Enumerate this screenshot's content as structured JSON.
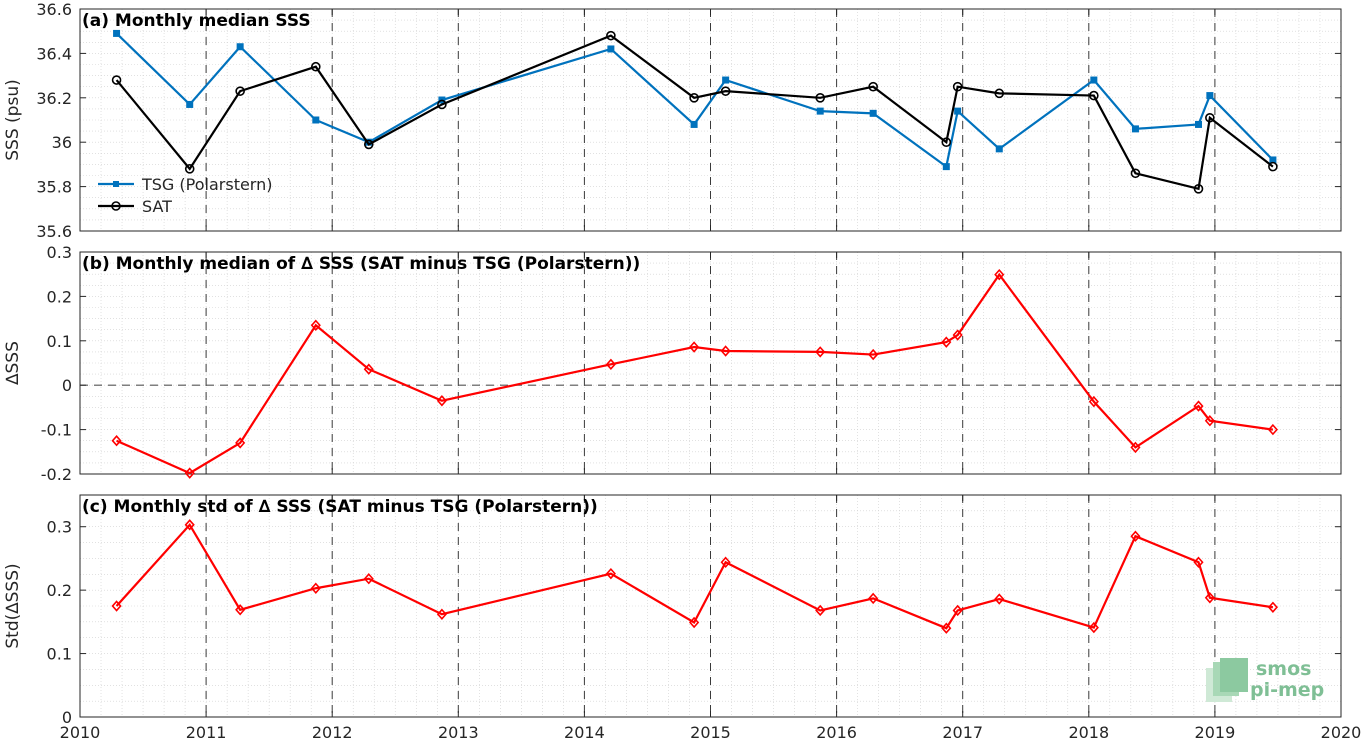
{
  "chart_data": [
    {
      "type": "line",
      "title": "(a) Monthly median SSS",
      "xlabel": "",
      "ylabel": "SSS (psu)",
      "xlim": [
        2010,
        2020
      ],
      "ylim": [
        35.6,
        36.6
      ],
      "yticks": [
        "35.6",
        "35.8",
        "36",
        "36.2",
        "36.4",
        "36.6"
      ],
      "grid": true,
      "legend_position": "bottom-left",
      "series": [
        {
          "name": "TSG (Polarstern)",
          "color": "#0072BD",
          "marker": "square",
          "x": [
            2010.29,
            2010.87,
            2011.27,
            2011.87,
            2012.29,
            2012.87,
            2014.21,
            2014.87,
            2015.12,
            2015.87,
            2016.29,
            2016.87,
            2016.96,
            2017.29,
            2018.04,
            2018.37,
            2018.87,
            2018.96,
            2019.46
          ],
          "values": [
            36.49,
            36.17,
            36.43,
            36.1,
            36.0,
            36.19,
            36.42,
            36.08,
            36.28,
            36.14,
            36.13,
            35.89,
            36.14,
            35.97,
            36.28,
            36.06,
            36.08,
            36.21,
            35.92
          ]
        },
        {
          "name": "SAT",
          "color": "#000000",
          "marker": "circle",
          "x": [
            2010.29,
            2010.87,
            2011.27,
            2011.87,
            2012.29,
            2012.87,
            2014.21,
            2014.87,
            2015.12,
            2015.87,
            2016.29,
            2016.87,
            2016.96,
            2017.29,
            2018.04,
            2018.37,
            2018.87,
            2018.96,
            2019.46
          ],
          "values": [
            36.28,
            35.88,
            36.23,
            36.34,
            35.99,
            36.17,
            36.48,
            36.2,
            36.23,
            36.2,
            36.25,
            36.0,
            36.25,
            36.22,
            36.21,
            35.86,
            35.79,
            36.11,
            35.89
          ]
        }
      ]
    },
    {
      "type": "line",
      "title": "(b) Monthly median of ∆ SSS (SAT minus TSG (Polarstern))",
      "xlabel": "",
      "ylabel": "∆SSS",
      "xlim": [
        2010,
        2020
      ],
      "ylim": [
        -0.2,
        0.3
      ],
      "yticks": [
        "-0.2",
        "-0.1",
        "0",
        "0.1",
        "0.2",
        "0.3"
      ],
      "grid": true,
      "zero_line": true,
      "series": [
        {
          "color": "#FF0000",
          "marker": "diamond",
          "x": [
            2010.29,
            2010.87,
            2011.27,
            2011.87,
            2012.29,
            2012.87,
            2014.21,
            2014.87,
            2015.12,
            2015.87,
            2016.29,
            2016.87,
            2016.96,
            2017.29,
            2018.04,
            2018.37,
            2018.87,
            2018.96,
            2019.46
          ],
          "values": [
            -0.125,
            -0.198,
            -0.13,
            0.135,
            0.036,
            -0.035,
            0.047,
            0.086,
            0.077,
            0.075,
            0.069,
            0.097,
            0.113,
            0.249,
            -0.037,
            -0.14,
            -0.047,
            -0.08,
            -0.1
          ]
        }
      ]
    },
    {
      "type": "line",
      "title": "(c) Monthly std of ∆ SSS (SAT minus TSG (Polarstern))",
      "xlabel": "",
      "ylabel": "Std(∆SSS)",
      "xlim": [
        2010,
        2020
      ],
      "ylim": [
        0,
        0.35
      ],
      "yticks": [
        "0",
        "0.1",
        "0.2",
        "0.3"
      ],
      "xticks": [
        "2010",
        "2011",
        "2012",
        "2013",
        "2014",
        "2015",
        "2016",
        "2017",
        "2018",
        "2019",
        "2020"
      ],
      "grid": true,
      "series": [
        {
          "color": "#FF0000",
          "marker": "diamond",
          "x": [
            2010.29,
            2010.87,
            2011.27,
            2011.87,
            2012.29,
            2012.87,
            2014.21,
            2014.87,
            2015.12,
            2015.87,
            2016.29,
            2016.87,
            2016.96,
            2017.29,
            2018.04,
            2018.37,
            2018.87,
            2018.96,
            2019.46
          ],
          "values": [
            0.175,
            0.303,
            0.169,
            0.203,
            0.218,
            0.162,
            0.226,
            0.149,
            0.244,
            0.168,
            0.187,
            0.14,
            0.168,
            0.186,
            0.141,
            0.285,
            0.244,
            0.188,
            0.173
          ]
        }
      ]
    }
  ],
  "logo": {
    "line1": "smos",
    "line2": "pi-mep"
  }
}
